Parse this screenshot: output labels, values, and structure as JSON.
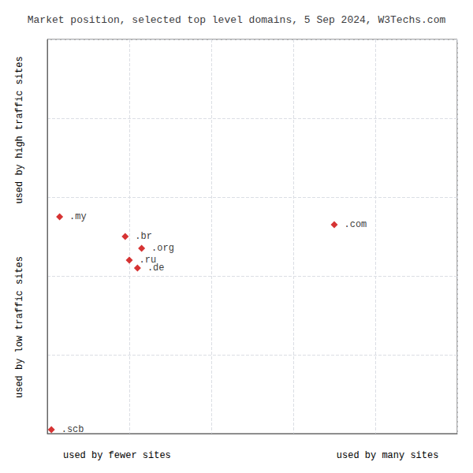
{
  "chart_data": {
    "type": "scatter",
    "title": "Market position, selected top level domains, 5 Sep 2024, W3Techs.com",
    "xlabel_left": "used by fewer sites",
    "xlabel_right": "used by many sites",
    "ylabel_top": "used by high traffic sites",
    "ylabel_bottom": "used by low traffic sites",
    "x": [
      3,
      70,
      19,
      23,
      20,
      22,
      1
    ],
    "values": [
      55,
      53,
      50,
      47,
      44,
      42,
      1
    ],
    "point_labels": [
      ".my",
      ".com",
      ".br",
      ".org",
      ".ru",
      ".de",
      ".scb"
    ],
    "color": "#cc0000",
    "marker": "diamond",
    "xlim": [
      0,
      100
    ],
    "ylim": [
      0,
      100
    ],
    "xticks": [
      20,
      40,
      60,
      80,
      100
    ],
    "yticks": [
      20,
      40,
      60,
      80,
      100
    ],
    "grid": true,
    "tick_labels": false
  }
}
